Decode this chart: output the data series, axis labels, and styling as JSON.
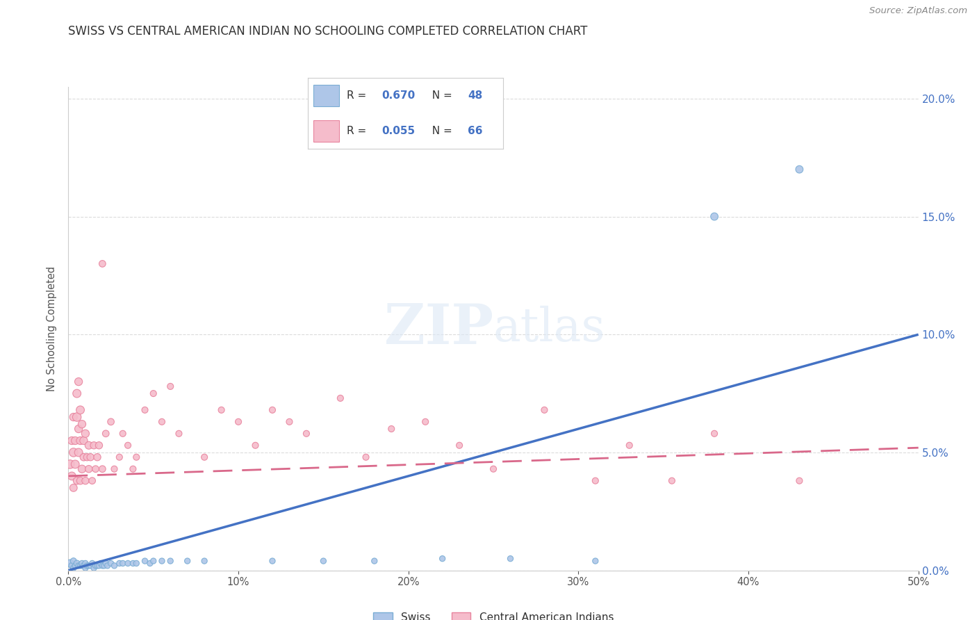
{
  "title": "SWISS VS CENTRAL AMERICAN INDIAN NO SCHOOLING COMPLETED CORRELATION CHART",
  "source": "Source: ZipAtlas.com",
  "ylabel": "No Schooling Completed",
  "watermark_zip": "ZIP",
  "watermark_atlas": "atlas",
  "xlim": [
    0.0,
    0.5
  ],
  "ylim": [
    0.0,
    0.205
  ],
  "xticks": [
    0.0,
    0.1,
    0.2,
    0.3,
    0.4,
    0.5
  ],
  "yticks": [
    0.0,
    0.05,
    0.1,
    0.15,
    0.2
  ],
  "swiss_color": "#aec6e8",
  "swiss_edge_color": "#7aadd4",
  "pink_color": "#f5bccb",
  "pink_edge_color": "#e8849e",
  "line_blue": "#4472c4",
  "line_pink": "#d9688a",
  "swiss_R": 0.67,
  "swiss_N": 48,
  "pink_R": 0.055,
  "pink_N": 66,
  "swiss_points": [
    [
      0.001,
      0.003
    ],
    [
      0.002,
      0.002
    ],
    [
      0.003,
      0.001
    ],
    [
      0.003,
      0.004
    ],
    [
      0.004,
      0.002
    ],
    [
      0.005,
      0.003
    ],
    [
      0.006,
      0.002
    ],
    [
      0.007,
      0.002
    ],
    [
      0.008,
      0.002
    ],
    [
      0.008,
      0.003
    ],
    [
      0.009,
      0.002
    ],
    [
      0.01,
      0.001
    ],
    [
      0.01,
      0.003
    ],
    [
      0.011,
      0.002
    ],
    [
      0.012,
      0.002
    ],
    [
      0.013,
      0.002
    ],
    [
      0.014,
      0.003
    ],
    [
      0.015,
      0.001
    ],
    [
      0.016,
      0.002
    ],
    [
      0.017,
      0.002
    ],
    [
      0.018,
      0.002
    ],
    [
      0.019,
      0.003
    ],
    [
      0.02,
      0.002
    ],
    [
      0.021,
      0.002
    ],
    [
      0.022,
      0.003
    ],
    [
      0.023,
      0.002
    ],
    [
      0.025,
      0.003
    ],
    [
      0.027,
      0.002
    ],
    [
      0.03,
      0.003
    ],
    [
      0.032,
      0.003
    ],
    [
      0.035,
      0.003
    ],
    [
      0.038,
      0.003
    ],
    [
      0.04,
      0.003
    ],
    [
      0.045,
      0.004
    ],
    [
      0.048,
      0.003
    ],
    [
      0.05,
      0.004
    ],
    [
      0.055,
      0.004
    ],
    [
      0.06,
      0.004
    ],
    [
      0.07,
      0.004
    ],
    [
      0.08,
      0.004
    ],
    [
      0.12,
      0.004
    ],
    [
      0.15,
      0.004
    ],
    [
      0.18,
      0.004
    ],
    [
      0.22,
      0.005
    ],
    [
      0.26,
      0.005
    ],
    [
      0.31,
      0.004
    ],
    [
      0.38,
      0.15
    ],
    [
      0.43,
      0.17
    ]
  ],
  "pink_points": [
    [
      0.001,
      0.045
    ],
    [
      0.002,
      0.04
    ],
    [
      0.002,
      0.055
    ],
    [
      0.003,
      0.035
    ],
    [
      0.003,
      0.05
    ],
    [
      0.003,
      0.065
    ],
    [
      0.004,
      0.045
    ],
    [
      0.004,
      0.055
    ],
    [
      0.005,
      0.038
    ],
    [
      0.005,
      0.065
    ],
    [
      0.005,
      0.075
    ],
    [
      0.006,
      0.05
    ],
    [
      0.006,
      0.06
    ],
    [
      0.006,
      0.08
    ],
    [
      0.007,
      0.038
    ],
    [
      0.007,
      0.055
    ],
    [
      0.007,
      0.068
    ],
    [
      0.008,
      0.043
    ],
    [
      0.008,
      0.062
    ],
    [
      0.009,
      0.048
    ],
    [
      0.009,
      0.055
    ],
    [
      0.01,
      0.038
    ],
    [
      0.01,
      0.058
    ],
    [
      0.011,
      0.048
    ],
    [
      0.012,
      0.043
    ],
    [
      0.012,
      0.053
    ],
    [
      0.013,
      0.048
    ],
    [
      0.014,
      0.038
    ],
    [
      0.015,
      0.053
    ],
    [
      0.016,
      0.043
    ],
    [
      0.017,
      0.048
    ],
    [
      0.018,
      0.053
    ],
    [
      0.02,
      0.043
    ],
    [
      0.02,
      0.13
    ],
    [
      0.022,
      0.058
    ],
    [
      0.025,
      0.063
    ],
    [
      0.027,
      0.043
    ],
    [
      0.03,
      0.048
    ],
    [
      0.032,
      0.058
    ],
    [
      0.035,
      0.053
    ],
    [
      0.038,
      0.043
    ],
    [
      0.04,
      0.048
    ],
    [
      0.045,
      0.068
    ],
    [
      0.05,
      0.075
    ],
    [
      0.055,
      0.063
    ],
    [
      0.06,
      0.078
    ],
    [
      0.065,
      0.058
    ],
    [
      0.08,
      0.048
    ],
    [
      0.09,
      0.068
    ],
    [
      0.1,
      0.063
    ],
    [
      0.11,
      0.053
    ],
    [
      0.12,
      0.068
    ],
    [
      0.13,
      0.063
    ],
    [
      0.14,
      0.058
    ],
    [
      0.16,
      0.073
    ],
    [
      0.175,
      0.048
    ],
    [
      0.19,
      0.06
    ],
    [
      0.21,
      0.063
    ],
    [
      0.23,
      0.053
    ],
    [
      0.25,
      0.043
    ],
    [
      0.28,
      0.068
    ],
    [
      0.31,
      0.038
    ],
    [
      0.33,
      0.053
    ],
    [
      0.355,
      0.038
    ],
    [
      0.38,
      0.058
    ],
    [
      0.43,
      0.038
    ]
  ],
  "swiss_sizes": [
    60,
    40,
    35,
    40,
    35,
    40,
    35,
    35,
    35,
    35,
    35,
    35,
    35,
    35,
    35,
    35,
    35,
    35,
    35,
    35,
    35,
    35,
    35,
    35,
    35,
    35,
    35,
    35,
    35,
    35,
    35,
    35,
    35,
    35,
    35,
    35,
    35,
    35,
    35,
    35,
    35,
    35,
    35,
    35,
    35,
    35,
    60,
    60
  ],
  "pink_sizes": [
    80,
    70,
    65,
    60,
    80,
    65,
    72,
    65,
    58,
    80,
    72,
    72,
    65,
    65,
    58,
    65,
    72,
    65,
    65,
    58,
    65,
    55,
    65,
    55,
    55,
    62,
    55,
    48,
    55,
    48,
    55,
    55,
    48,
    48,
    48,
    48,
    42,
    42,
    42,
    42,
    42,
    42,
    42,
    42,
    42,
    42,
    42,
    42,
    42,
    42,
    42,
    42,
    42,
    42,
    42,
    42,
    42,
    42,
    42,
    42,
    42,
    42,
    42,
    42,
    42,
    42
  ]
}
